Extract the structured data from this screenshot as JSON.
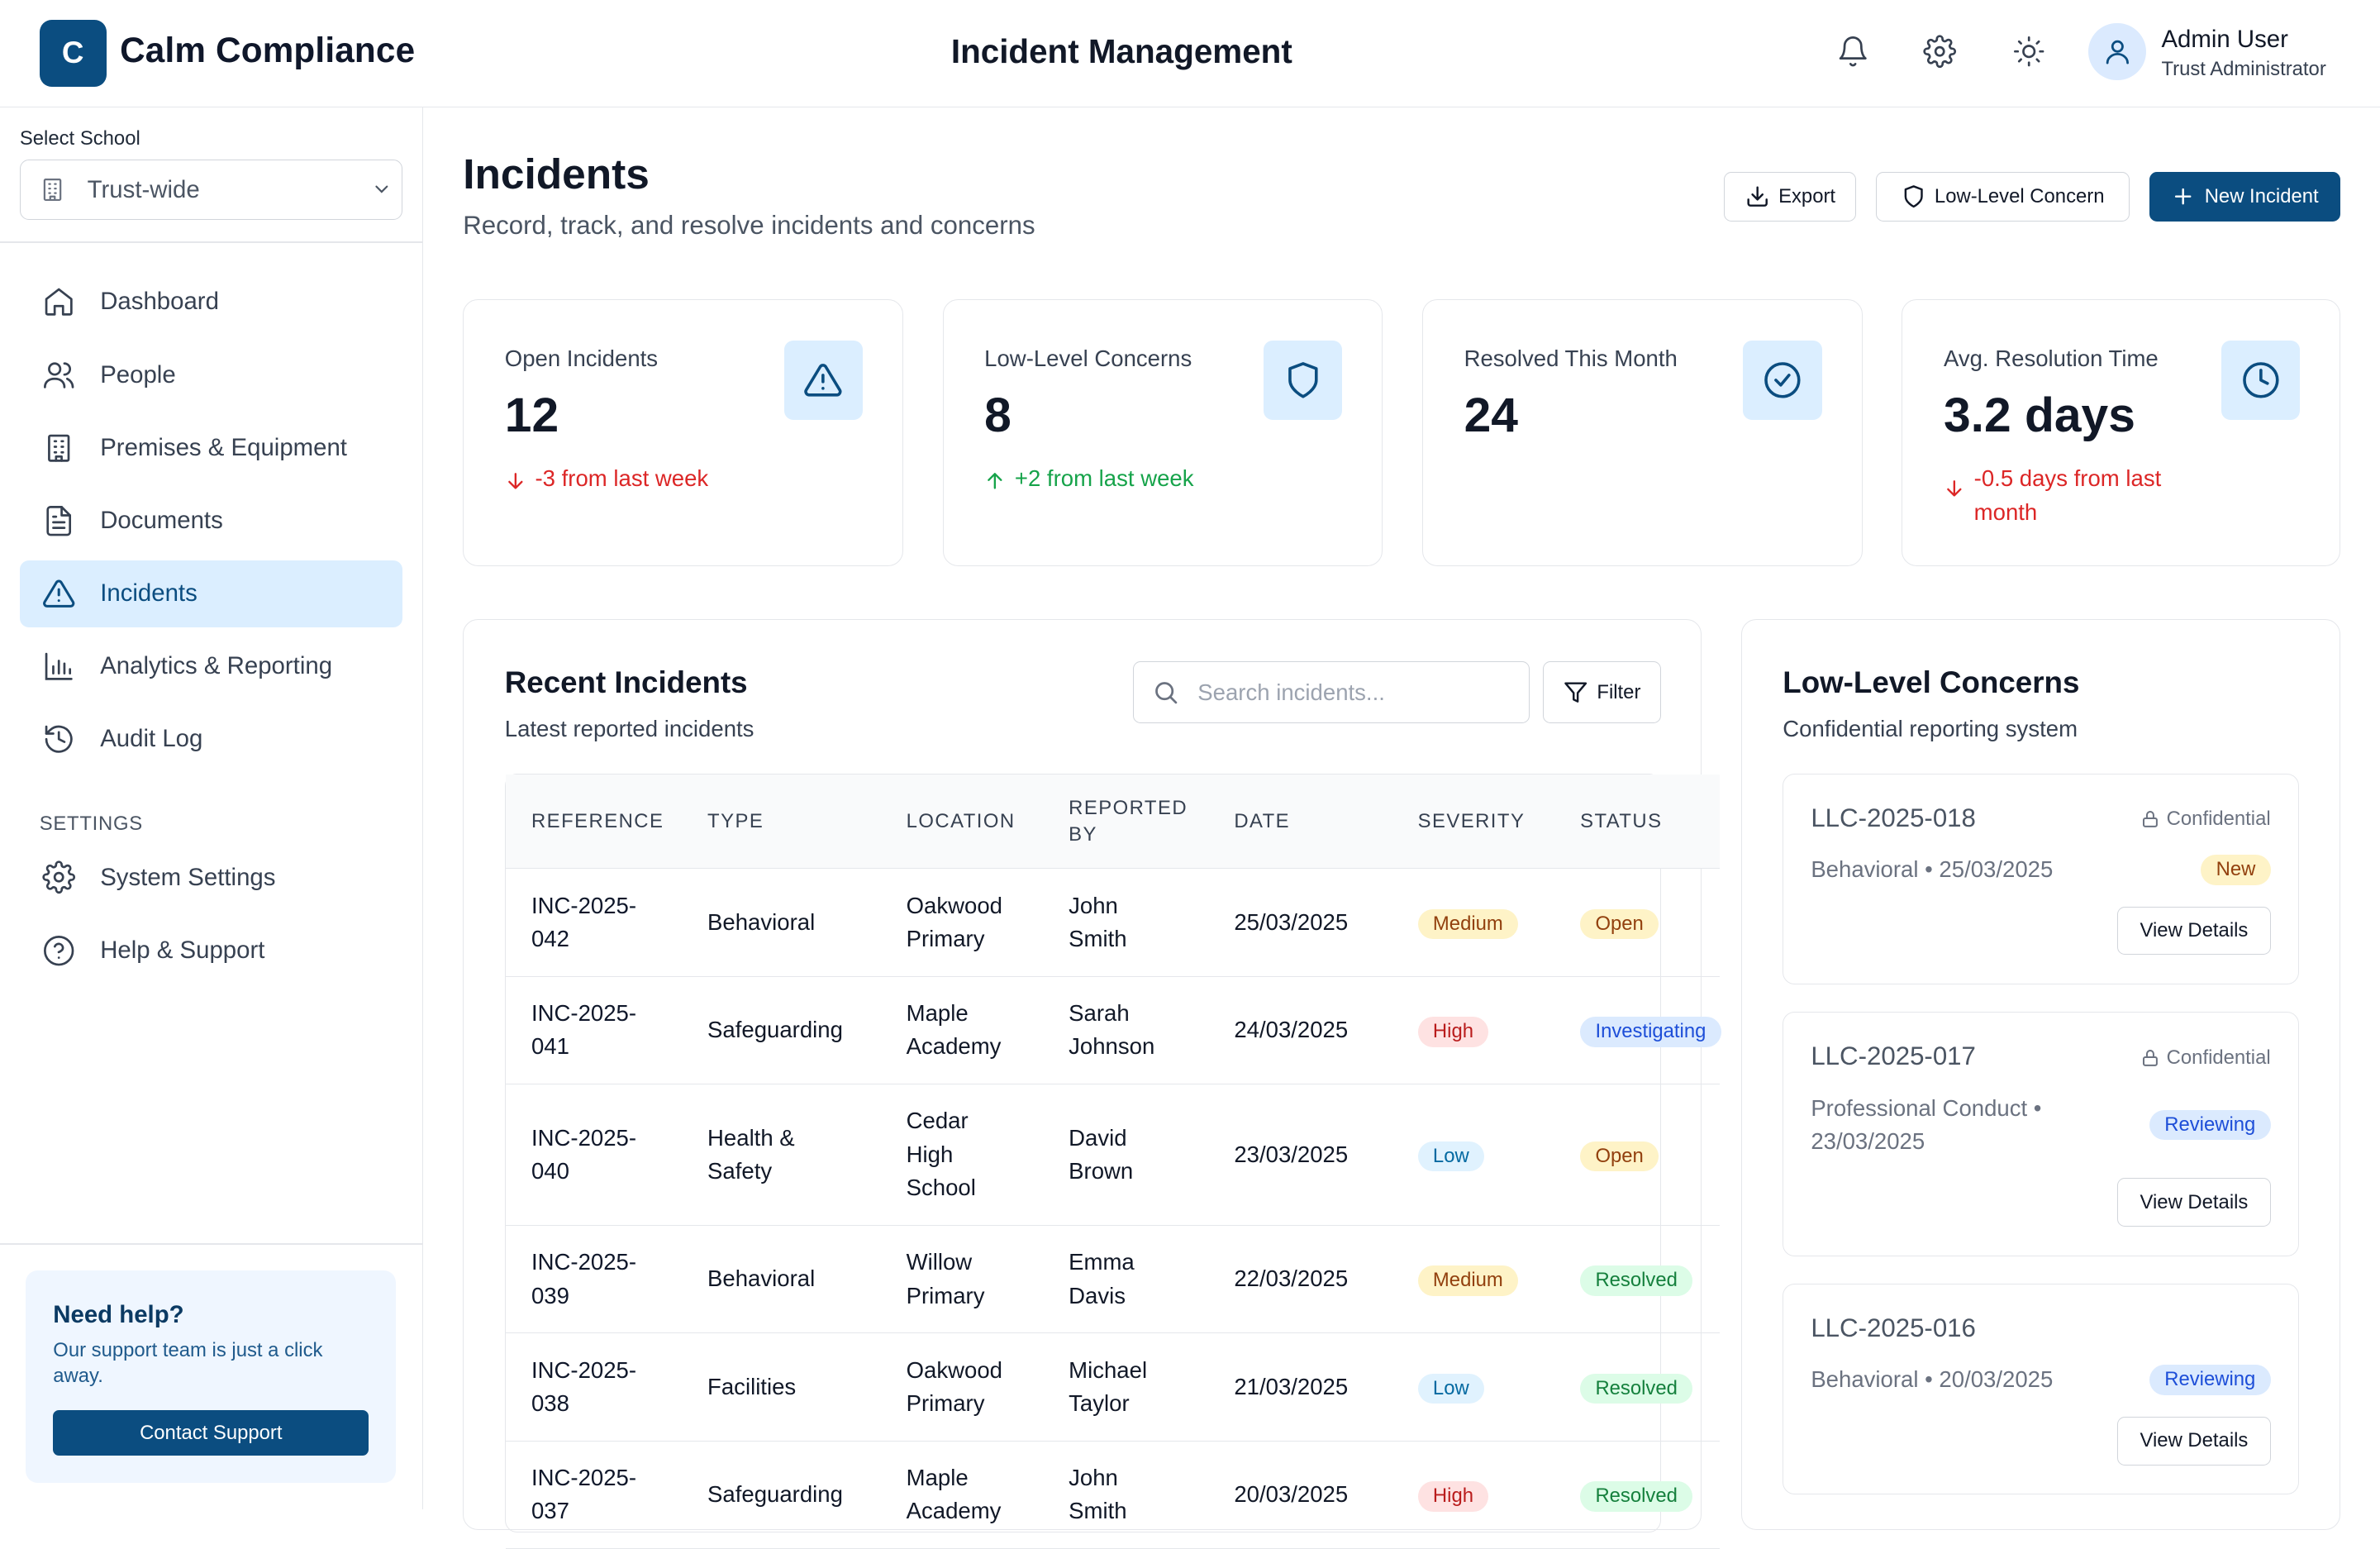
{
  "brand": {
    "logo_letter": "C",
    "name": "Calm Compliance"
  },
  "header": {
    "title": "Incident Management",
    "user": {
      "name": "Admin User",
      "role": "Trust Administrator"
    }
  },
  "sidebar": {
    "school_label": "Select School",
    "school_value": "Trust-wide",
    "items": [
      {
        "label": "Dashboard",
        "icon": "home-icon"
      },
      {
        "label": "People",
        "icon": "people-icon"
      },
      {
        "label": "Premises & Equipment",
        "icon": "building-icon"
      },
      {
        "label": "Documents",
        "icon": "document-icon"
      },
      {
        "label": "Incidents",
        "icon": "warning-icon",
        "active": true
      },
      {
        "label": "Analytics & Reporting",
        "icon": "bar-chart-icon"
      },
      {
        "label": "Audit Log",
        "icon": "history-icon"
      }
    ],
    "settings_heading": "SETTINGS",
    "settings_items": [
      {
        "label": "System Settings",
        "icon": "gear-icon"
      },
      {
        "label": "Help & Support",
        "icon": "help-circle-icon"
      }
    ],
    "help": {
      "title": "Need help?",
      "text": "Our support team is just a click away.",
      "button": "Contact Support"
    }
  },
  "page": {
    "title": "Incidents",
    "subtitle": "Record, track, and resolve incidents and concerns",
    "buttons": {
      "export": "Export",
      "low_level": "Low-Level Concern",
      "new_incident": "New Incident"
    }
  },
  "stats": [
    {
      "label": "Open Incidents",
      "value": "12",
      "delta": "-3 from last week",
      "direction": "down",
      "icon": "warning-icon"
    },
    {
      "label": "Low-Level Concerns",
      "value": "8",
      "delta": "+2 from last week",
      "direction": "up",
      "icon": "shield-icon"
    },
    {
      "label": "Resolved This Month",
      "value": "24",
      "delta": "",
      "direction": "none",
      "icon": "check-circle-icon"
    },
    {
      "label": "Avg. Resolution Time",
      "value": "3.2 days",
      "delta": "-0.5 days from last month",
      "direction": "down",
      "icon": "clock-icon"
    }
  ],
  "recent": {
    "title": "Recent Incidents",
    "subtitle": "Latest reported incidents",
    "search_placeholder": "Search incidents...",
    "filter_label": "Filter",
    "columns": [
      "REFERENCE",
      "TYPE",
      "LOCATION",
      "REPORTED BY",
      "DATE",
      "SEVERITY",
      "STATUS"
    ],
    "rows": [
      {
        "ref": "INC-2025-042",
        "type": "Behavioral",
        "location": "Oakwood Primary",
        "reporter": "John Smith",
        "date": "25/03/2025",
        "severity": "Medium",
        "status": "Open"
      },
      {
        "ref": "INC-2025-041",
        "type": "Safeguarding",
        "location": "Maple Academy",
        "reporter": "Sarah Johnson",
        "date": "24/03/2025",
        "severity": "High",
        "status": "Investigating"
      },
      {
        "ref": "INC-2025-040",
        "type": "Health & Safety",
        "location": "Cedar High School",
        "reporter": "David Brown",
        "date": "23/03/2025",
        "severity": "Low",
        "status": "Open"
      },
      {
        "ref": "INC-2025-039",
        "type": "Behavioral",
        "location": "Willow Primary",
        "reporter": "Emma Davis",
        "date": "22/03/2025",
        "severity": "Medium",
        "status": "Resolved"
      },
      {
        "ref": "INC-2025-038",
        "type": "Facilities",
        "location": "Oakwood Primary",
        "reporter": "Michael Taylor",
        "date": "21/03/2025",
        "severity": "Low",
        "status": "Resolved"
      },
      {
        "ref": "INC-2025-037",
        "type": "Safeguarding",
        "location": "Maple Academy",
        "reporter": "John Smith",
        "date": "20/03/2025",
        "severity": "High",
        "status": "Resolved"
      }
    ]
  },
  "llc": {
    "title": "Low-Level Concerns",
    "subtitle": "Confidential reporting system",
    "confidential_label": "Confidential",
    "view_label": "View Details",
    "items": [
      {
        "ref": "LLC-2025-018",
        "meta": "Behavioral • 25/03/2025",
        "status": "New",
        "confidential": true
      },
      {
        "ref": "LLC-2025-017",
        "meta": "Professional Conduct • 23/03/2025",
        "status": "Reviewing",
        "confidential": true
      },
      {
        "ref": "LLC-2025-016",
        "meta": "Behavioral • 20/03/2025",
        "status": "Reviewing",
        "confidential": false
      }
    ]
  },
  "colors": {
    "primary": "#0b4d80",
    "active_nav_bg": "#dbeeff",
    "down": "#dc2626",
    "up": "#16a34a"
  }
}
